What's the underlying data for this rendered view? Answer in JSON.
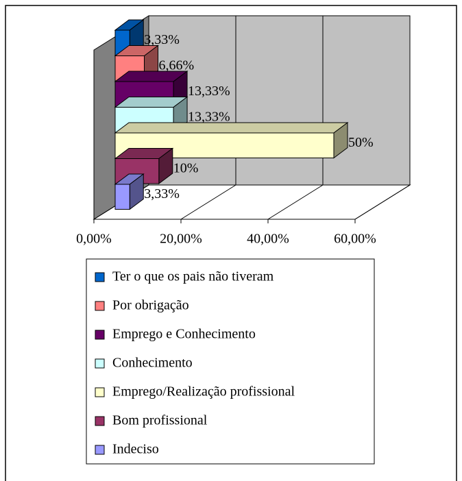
{
  "chart_data": {
    "type": "bar3d_horizontal",
    "categories": [
      "Ter o que os pais não tiveram",
      "Por obrigação",
      "Emprego e Conhecimento",
      "Conhecimento",
      "Emprego/Realização profissional",
      "Bom profissional",
      "Indeciso"
    ],
    "values": [
      3.33,
      6.66,
      13.33,
      13.33,
      50,
      10,
      3.33
    ],
    "value_labels": [
      "3,33%",
      "6,66%",
      "13,33%",
      "13,33%",
      "50%",
      "10%",
      "3,33%"
    ],
    "colors": [
      "#0066cc",
      "#ff8080",
      "#660066",
      "#ccffff",
      "#ffffcc",
      "#993366",
      "#9999ff"
    ],
    "xlim": [
      0,
      60
    ],
    "xticks": [
      {
        "value": 0,
        "label": "0,00%"
      },
      {
        "value": 20,
        "label": "20,00%"
      },
      {
        "value": 40,
        "label": "40,00%"
      },
      {
        "value": 60,
        "label": "60,00%"
      }
    ],
    "grid": true,
    "legend": "bottom"
  }
}
